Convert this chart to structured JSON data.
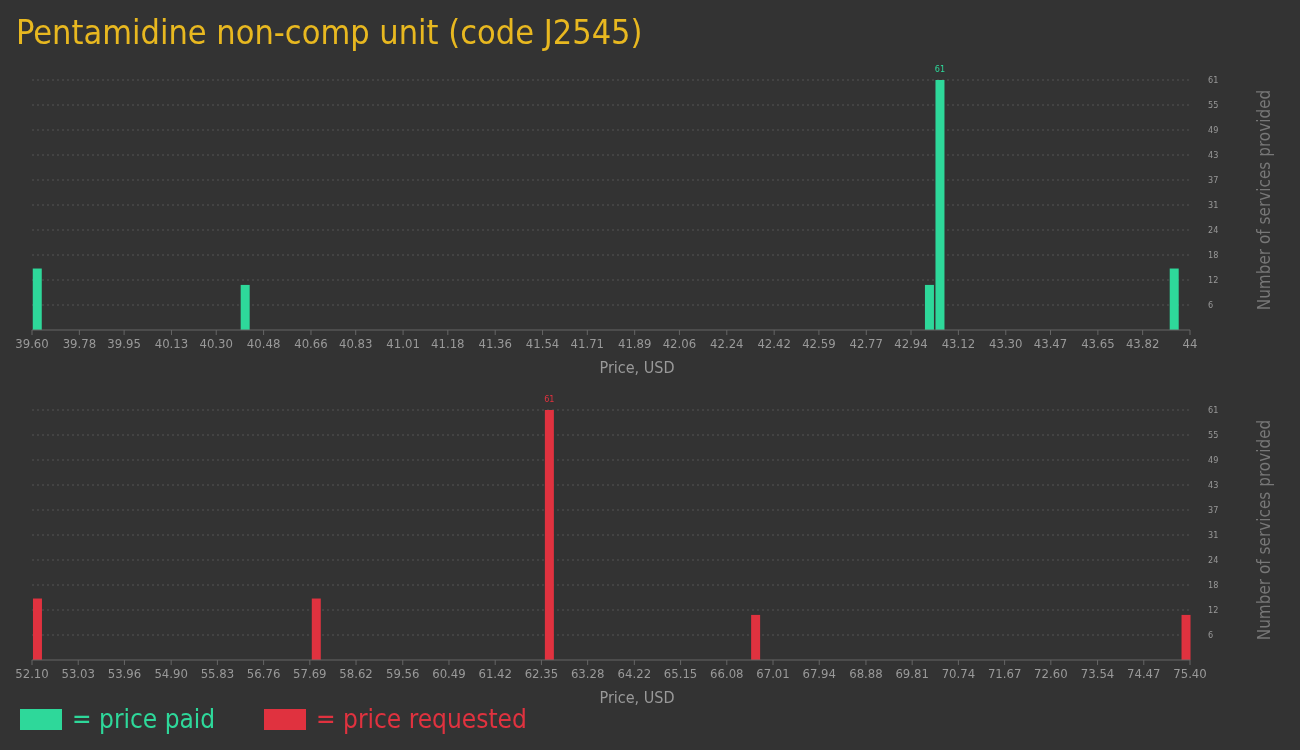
{
  "chart_data": [
    {
      "type": "bar",
      "title": "Pentamidine non-comp unit (code J2545)",
      "xlabel": "Price, USD",
      "ylabel": "Number of services provided",
      "x": [
        39.62,
        40.41,
        43.01,
        43.05,
        43.94
      ],
      "series": [
        {
          "name": "= price paid",
          "color": "#2ed89a",
          "values": [
            15,
            11,
            11,
            61,
            15
          ],
          "value_labels": [
            null,
            null,
            null,
            "61",
            null
          ]
        }
      ],
      "xlim": [
        39.6,
        44
      ],
      "xticks": [
        {
          "value": 39.6,
          "label": "39.60"
        },
        39.78,
        39.95,
        40.13,
        {
          "value": 40.3,
          "label": "40.30"
        },
        40.48,
        40.66,
        40.83,
        41.01,
        41.18,
        41.36,
        41.54,
        41.71,
        41.89,
        42.06,
        42.24,
        42.42,
        42.59,
        42.77,
        42.94,
        43.12,
        {
          "value": 43.3,
          "label": "43.30"
        },
        43.47,
        43.65,
        43.82,
        44
      ],
      "ylim": [
        0,
        61
      ],
      "yticks": [
        {
          "value": 6.1,
          "label": "6"
        },
        {
          "value": 12.2,
          "label": "12"
        },
        {
          "value": 18.3,
          "label": "18"
        },
        {
          "value": 24.4,
          "label": "24"
        },
        {
          "value": 30.5,
          "label": "31"
        },
        {
          "value": 36.6,
          "label": "37"
        },
        {
          "value": 42.7,
          "label": "43"
        },
        {
          "value": 48.8,
          "label": "49"
        },
        {
          "value": 54.9,
          "label": "55"
        },
        61
      ],
      "grid": "y",
      "legend": "bottom left"
    },
    {
      "type": "bar",
      "xlabel": "Price, USD",
      "ylabel": "Number of services provided",
      "x": [
        52.21,
        57.82,
        62.51,
        66.66,
        75.32
      ],
      "series": [
        {
          "name": "= price requested",
          "color": "#e0323f",
          "values": [
            15,
            15,
            61,
            11,
            11
          ],
          "value_labels": [
            null,
            null,
            "61",
            null,
            null
          ]
        }
      ],
      "xlim": [
        52.1,
        75.4
      ],
      "xticks": [
        {
          "value": 52.1,
          "label": "52.10"
        },
        53.03,
        53.96,
        {
          "value": 54.9,
          "label": "54.90"
        },
        55.83,
        56.76,
        57.69,
        58.62,
        59.56,
        60.49,
        61.42,
        62.35,
        63.28,
        64.22,
        65.15,
        66.08,
        67.01,
        67.94,
        68.88,
        69.81,
        70.74,
        71.67,
        {
          "value": 72.6,
          "label": "72.60"
        },
        73.54,
        74.47,
        {
          "value": 75.4,
          "label": "75.40"
        }
      ],
      "ylim": [
        0,
        61
      ],
      "yticks": [
        {
          "value": 6.1,
          "label": "6"
        },
        {
          "value": 12.2,
          "label": "12"
        },
        {
          "value": 18.3,
          "label": "18"
        },
        {
          "value": 24.4,
          "label": "24"
        },
        {
          "value": 30.5,
          "label": "31"
        },
        {
          "value": 36.6,
          "label": "37"
        },
        {
          "value": 42.7,
          "label": "43"
        },
        {
          "value": 48.8,
          "label": "49"
        },
        {
          "value": 54.9,
          "label": "55"
        },
        61
      ],
      "grid": "y",
      "legend": "bottom left"
    }
  ]
}
